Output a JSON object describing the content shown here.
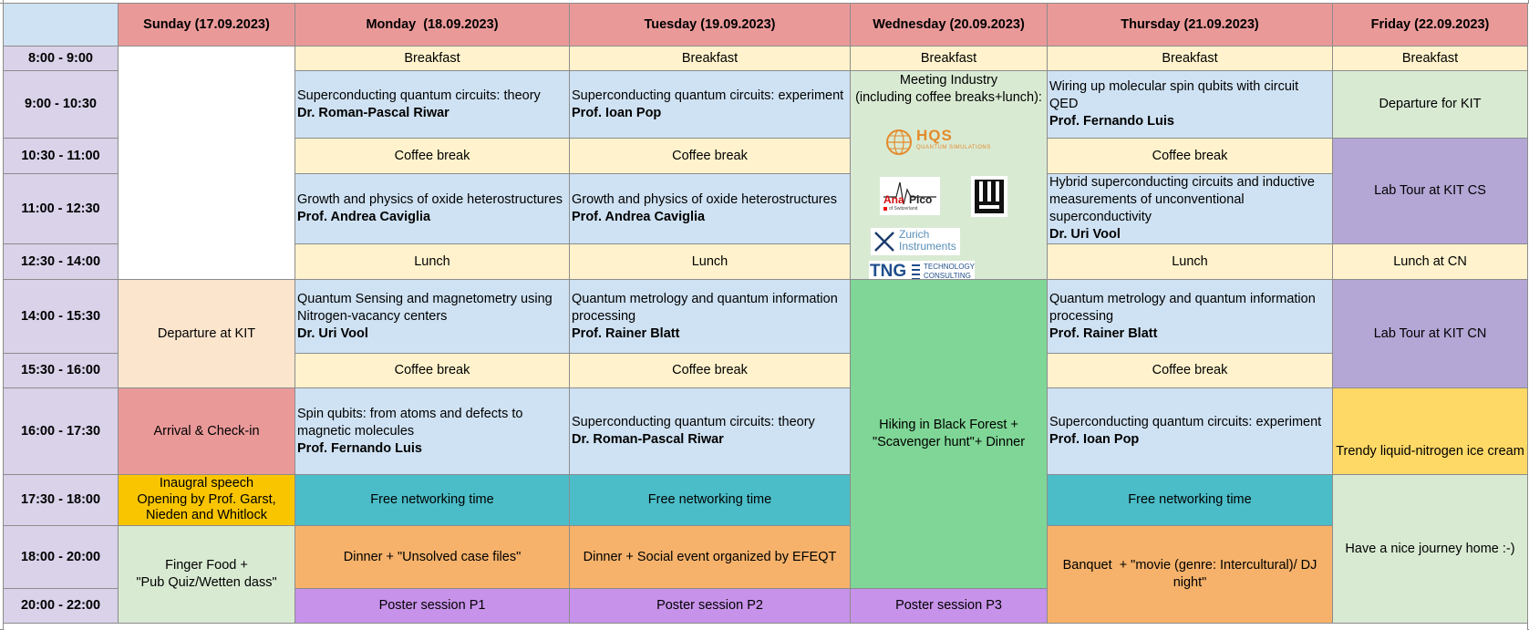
{
  "days": [
    "Sunday (17.09.2023)",
    "Monday  (18.09.2023)",
    "Tuesday (19.09.2023)",
    "Wednesday (20.09.2023)",
    "Thursday (21.09.2023)",
    "Friday (22.09.2023)"
  ],
  "times": [
    "8:00 - 9:00",
    "9:00 - 10:30",
    "10:30 - 11:00",
    "11:00 - 12:30",
    "12:30 - 14:00",
    "14:00 - 15:30",
    "15:30 - 16:00",
    "16:00 - 17:30",
    "17:30 - 18:00",
    "18:00 - 20:00",
    "20:00 - 22:00"
  ],
  "sunday": {
    "departure": "Departure at KIT",
    "arrival": "Arrival & Check-in",
    "inaugural": [
      "Inaugral speech",
      "Opening by Prof. Garst,",
      "Nieden and Whitlock"
    ],
    "finger_food": [
      "Finger Food +",
      "\"Pub Quiz/Wetten dass\""
    ]
  },
  "monday": {
    "breakfast": "Breakfast",
    "s1_title": "Superconducting quantum circuits: theory",
    "s1_speaker": "Dr. Roman-Pascal Riwar",
    "coffee1": "Coffee break",
    "s2_title": "Growth and physics of oxide heterostructures",
    "s2_speaker": "Prof. Andrea Caviglia",
    "lunch": "Lunch",
    "s3_title_1": "Quantum Sensing and magnetometry using",
    "s3_title_2": "Nitrogen-vacancy centers",
    "s3_speaker": "Dr. Uri Vool",
    "coffee2": "Coffee break",
    "s4_title_1": "Spin qubits: from atoms and defects to",
    "s4_title_2": "magnetic molecules",
    "s4_speaker": "Prof. Fernando Luis",
    "networking": "Free networking time",
    "dinner": "Dinner + \"Unsolved case files\"",
    "poster": "Poster session P1"
  },
  "tuesday": {
    "breakfast": "Breakfast",
    "s1_title": "Superconducting quantum circuits: experiment",
    "s1_speaker": "Prof. Ioan Pop",
    "coffee1": "Coffee break",
    "s2_title": "Growth and physics of oxide heterostructures",
    "s2_speaker": "Prof. Andrea Caviglia",
    "lunch": "Lunch",
    "s3_title_1": "Quantum metrology and quantum information",
    "s3_title_2": "processing",
    "s3_speaker": "Prof. Rainer Blatt",
    "coffee2": "Coffee break",
    "s4_title": "Superconducting quantum circuits: theory",
    "s4_speaker": "Dr. Roman-Pascal Riwar",
    "networking": "Free networking time",
    "dinner": "Dinner + Social event organized by EFEQT",
    "poster": "Poster session P2"
  },
  "wednesday": {
    "breakfast": "Breakfast",
    "industry_1": "Meeting Industry",
    "industry_2": "(including coffee breaks+lunch):",
    "hiking_1": "Hiking in Black Forest +",
    "hiking_2": "\"Scavenger hunt\"+ Dinner",
    "poster": "Poster session P3",
    "logos": {
      "hqs_mark": "HQS",
      "hqs_sub": "QUANTUM SIMULATIONS",
      "anapico_1": "Ana",
      "anapico_2": "Pico",
      "anapico_sub": "of Switzerland",
      "zurich_1": "Zurich",
      "zurich_2": "Instruments",
      "tng": "TNG",
      "tng_sub_1": "TECHNOLOGY",
      "tng_sub_2": "CONSULTING"
    }
  },
  "thursday": {
    "breakfast": "Breakfast",
    "s1_title_1": "Wiring up molecular spin qubits with circuit",
    "s1_title_2": "QED",
    "s1_speaker": "Prof. Fernando Luis",
    "coffee1": "Coffee break",
    "s2_title_1": "Hybrid superconducting circuits and inductive",
    "s2_title_2": "measurements of unconventional",
    "s2_title_3": "superconductivity",
    "s2_speaker": "Dr. Uri Vool",
    "lunch": "Lunch",
    "s3_title_1": "Quantum metrology and quantum information",
    "s3_title_2": "processing",
    "s3_speaker": "Prof. Rainer Blatt",
    "coffee2": "Coffee break",
    "s4_title": "Superconducting quantum circuits: experiment",
    "s4_speaker": "Prof. Ioan Pop",
    "networking": "Free networking time",
    "banquet_1": "Banquet  + \"movie (genre: Intercultural)/ DJ",
    "banquet_2": "night\""
  },
  "friday": {
    "breakfast": "Breakfast",
    "departure": "Departure for KIT",
    "lab_cs": "Lab Tour at KIT CS",
    "lunch": "Lunch at CN",
    "lab_cn": "Lab Tour at KIT CN",
    "ice_cream": "Trendy liquid-nitrogen ice cream",
    "journey": "Have a nice journey home :-)"
  }
}
